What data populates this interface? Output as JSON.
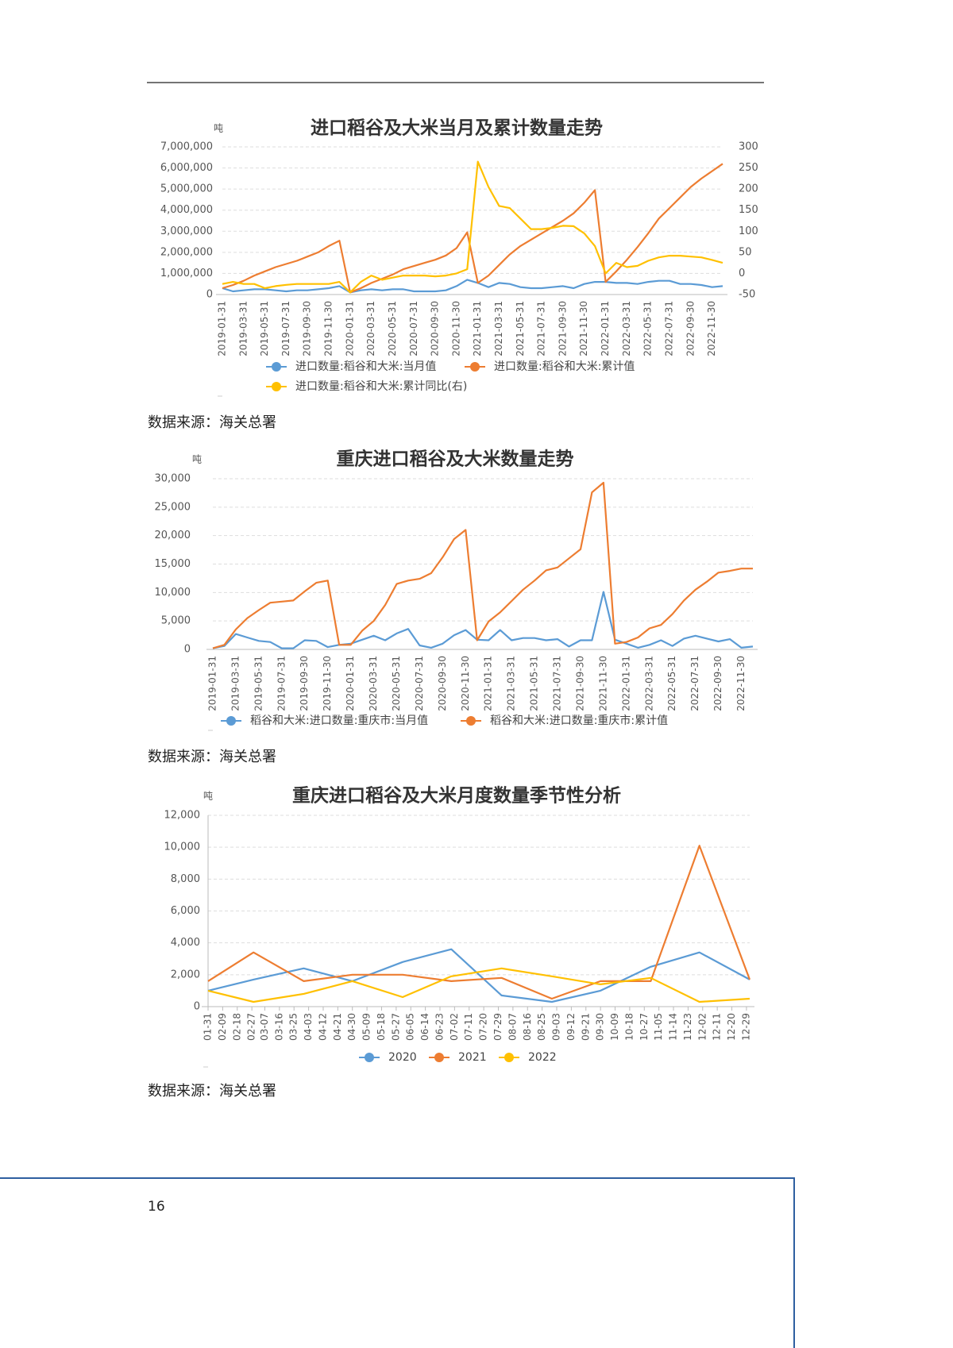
{
  "chart_data": [
    {
      "type": "line",
      "title": "进口稻谷及大米当月及累计数量走势",
      "y_unit": "吨",
      "categories": [
        "2019-01-31",
        null,
        "2019-03-31",
        null,
        "2019-05-31",
        null,
        "2019-07-31",
        null,
        "2019-09-30",
        null,
        "2019-11-30",
        null,
        "2020-01-31",
        null,
        "2020-03-31",
        null,
        "2020-05-31",
        null,
        "2020-07-31",
        null,
        "2020-09-30",
        null,
        "2020-11-30",
        null,
        "2021-01-31",
        null,
        "2021-03-31",
        null,
        "2021-05-31",
        null,
        "2021-07-31",
        null,
        "2021-09-30",
        null,
        "2021-11-30",
        null,
        "2022-01-31",
        null,
        "2022-03-31",
        null,
        "2022-05-31",
        null,
        "2022-07-31",
        null,
        "2022-09-30",
        null,
        "2022-11-30",
        null
      ],
      "series": [
        {
          "name": "进口数量:稻谷和大米:当月值",
          "color": "#5b9bd5",
          "values": [
            300000,
            150000,
            200000,
            250000,
            250000,
            200000,
            150000,
            200000,
            200000,
            250000,
            300000,
            400000,
            100000,
            200000,
            250000,
            200000,
            250000,
            250000,
            150000,
            150000,
            150000,
            200000,
            400000,
            700000,
            550000,
            350000,
            550000,
            500000,
            350000,
            300000,
            300000,
            350000,
            400000,
            300000,
            500000,
            600000,
            600000,
            550000,
            550000,
            500000,
            600000,
            650000,
            650000,
            500000,
            500000,
            450000,
            350000,
            400000
          ]
        },
        {
          "name": "进口数量:稻谷和大米:累计值",
          "color": "#ed7d31",
          "values": [
            300000,
            450000,
            650000,
            900000,
            1100000,
            1300000,
            1450000,
            1600000,
            1800000,
            2000000,
            2300000,
            2550000,
            100000,
            300000,
            550000,
            750000,
            950000,
            1200000,
            1350000,
            1500000,
            1650000,
            1850000,
            2200000,
            2950000,
            550000,
            900000,
            1400000,
            1900000,
            2300000,
            2600000,
            2900000,
            3200000,
            3500000,
            3850000,
            4350000,
            4950000,
            600000,
            1100000,
            1650000,
            2250000,
            2900000,
            3600000,
            4100000,
            4600000,
            5100000,
            5500000,
            5850000,
            6200000
          ]
        },
        {
          "name": "进口数量:稻谷和大米:累计同比(右)",
          "color": "#ffc000",
          "axis": "y2",
          "values": [
            -25,
            -20,
            -25,
            -25,
            -35,
            -30,
            -27,
            -25,
            -25,
            -25,
            -25,
            -20,
            -45,
            -20,
            -5,
            -15,
            -10,
            -5,
            -5,
            -5,
            -7,
            -5,
            0,
            10,
            265,
            205,
            160,
            155,
            130,
            105,
            105,
            108,
            113,
            112,
            95,
            65,
            0,
            25,
            15,
            18,
            30,
            38,
            42,
            42,
            40,
            38,
            32,
            25
          ]
        }
      ],
      "ylim": [
        0,
        7000000
      ],
      "yticks": [
        0,
        {
          "value": 1000000,
          "label": "1,000,000"
        },
        {
          "value": 2000000,
          "label": "2,000,000"
        },
        {
          "value": 3000000,
          "label": "3,000,000"
        },
        {
          "value": 4000000,
          "label": "4,000,000"
        },
        {
          "value": 5000000,
          "label": "5,000,000"
        },
        {
          "value": 6000000,
          "label": "6,000,000"
        },
        {
          "value": 7000000,
          "label": "7,000,000"
        }
      ],
      "y2lim": [
        -50,
        300
      ],
      "y2ticks": [
        -50,
        0,
        50,
        100,
        150,
        200,
        250,
        300
      ],
      "grid": true
    },
    {
      "type": "line",
      "title": "重庆进口稻谷及大米数量走势",
      "y_unit": "吨",
      "categories": [
        "2019-01-31",
        null,
        "2019-03-31",
        null,
        "2019-05-31",
        null,
        "2019-07-31",
        null,
        "2019-09-30",
        null,
        "2019-11-30",
        null,
        "2020-01-31",
        null,
        "2020-03-31",
        null,
        "2020-05-31",
        null,
        "2020-07-31",
        null,
        "2020-09-30",
        null,
        "2020-11-30",
        null,
        "2021-01-31",
        null,
        "2021-03-31",
        null,
        "2021-05-31",
        null,
        "2021-07-31",
        null,
        "2021-09-30",
        null,
        "2021-11-30",
        null,
        "2022-01-31",
        null,
        "2022-03-31",
        null,
        "2022-05-31",
        null,
        "2022-07-31",
        null,
        "2022-09-30",
        null,
        "2022-11-30",
        null
      ],
      "series": [
        {
          "name": "稻谷和大米:进口数量:重庆市:当月值",
          "color": "#5b9bd5",
          "values": [
            200,
            600,
            2700,
            2100,
            1500,
            1300,
            200,
            200,
            1600,
            1500,
            400,
            800,
            1000,
            1700,
            2400,
            1600,
            2800,
            3600,
            700,
            300,
            1000,
            2500,
            3400,
            1700,
            1600,
            3400,
            1600,
            2000,
            2000,
            1600,
            1800,
            500,
            1600,
            1600,
            10100,
            1700,
            1000,
            300,
            800,
            1600,
            600,
            1900,
            2400,
            1900,
            1400,
            1800,
            300,
            500
          ]
        },
        {
          "name": "稻谷和大米:进口数量:重庆市:累计值",
          "color": "#ed7d31",
          "values": [
            200,
            800,
            3500,
            5500,
            6900,
            8200,
            8400,
            8600,
            10200,
            11700,
            12100,
            800,
            800,
            3300,
            5000,
            7800,
            11500,
            12100,
            12400,
            13400,
            16200,
            19400,
            21000,
            1600,
            4900,
            6500,
            8500,
            10500,
            12100,
            13900,
            14400,
            16000,
            17600,
            27600,
            29300,
            1000,
            1300,
            2100,
            3700,
            4300,
            6200,
            8600,
            10500,
            11900,
            13500,
            13800,
            14200,
            14200
          ]
        }
      ],
      "ylim": [
        0,
        30000
      ],
      "yticks": [
        0,
        {
          "value": 5000,
          "label": "5,000"
        },
        {
          "value": 10000,
          "label": "10,000"
        },
        {
          "value": 15000,
          "label": "15,000"
        },
        {
          "value": 20000,
          "label": "20,000"
        },
        {
          "value": 25000,
          "label": "25,000"
        },
        {
          "value": 30000,
          "label": "30,000"
        }
      ],
      "grid": true
    },
    {
      "type": "line",
      "title": "重庆进口稻谷及大米月度数量季节性分析",
      "y_unit": "吨",
      "x": [
        "01-31",
        "02-28",
        "03-31",
        "04-30",
        "05-31",
        "06-30",
        "07-31",
        "08-31",
        "09-30",
        "10-31",
        "11-30",
        "12-31"
      ],
      "xlim": [
        "01-31",
        "12-31"
      ],
      "xticks": [
        "01-31",
        "02-09",
        "02-18",
        "02-27",
        "03-07",
        "03-16",
        "03-25",
        "04-03",
        "04-12",
        "04-21",
        "04-30",
        "05-09",
        "05-18",
        "05-27",
        "06-05",
        "06-14",
        "06-23",
        "07-02",
        "07-11",
        "07-20",
        "07-29",
        "08-07",
        "08-16",
        "08-25",
        "09-03",
        "09-12",
        "09-21",
        "09-30",
        "10-09",
        "10-18",
        "10-27",
        "11-05",
        "11-14",
        "11-23",
        "12-02",
        "12-11",
        "12-20",
        "12-29"
      ],
      "series": [
        {
          "name": "2020",
          "color": "#5b9bd5",
          "values": [
            1000,
            1700,
            2400,
            1600,
            2800,
            3600,
            700,
            300,
            1000,
            2500,
            3400,
            1700
          ]
        },
        {
          "name": "2021",
          "color": "#ed7d31",
          "values": [
            1600,
            3400,
            1600,
            2000,
            2000,
            1600,
            1800,
            500,
            1600,
            1600,
            10100,
            1700
          ]
        },
        {
          "name": "2022",
          "color": "#ffc000",
          "values": [
            1000,
            300,
            800,
            1600,
            600,
            1900,
            2400,
            1900,
            1400,
            1800,
            300,
            500
          ]
        }
      ],
      "ylim": [
        0,
        12000
      ],
      "yticks": [
        0,
        {
          "value": 2000,
          "label": "2,000"
        },
        {
          "value": 4000,
          "label": "4,000"
        },
        {
          "value": 6000,
          "label": "6,000"
        },
        {
          "value": 8000,
          "label": "8,000"
        },
        {
          "value": 10000,
          "label": "10,000"
        },
        {
          "value": 12000,
          "label": "12,000"
        }
      ],
      "grid": true
    }
  ],
  "notes": [
    "数据来源：海关总署",
    "数据来源：海关总署",
    "数据来源：海关总署"
  ],
  "page_number": "16"
}
